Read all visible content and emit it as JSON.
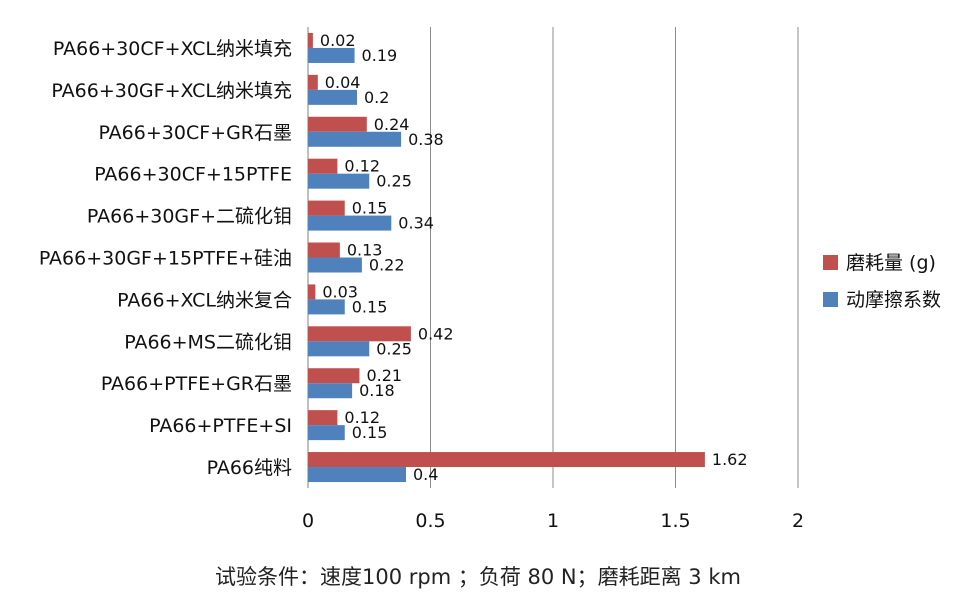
{
  "chart_data": {
    "type": "bar",
    "orientation": "horizontal",
    "categories": [
      "PA66+30CF+XCL纳米填充",
      "PA66+30GF+XCL纳米填充",
      "PA66+30CF+GR石墨",
      "PA66+30CF+15PTFE",
      "PA66+30GF+二硫化钼",
      "PA66+30GF+15PTFE+硅油",
      "PA66+XCL纳米复合",
      "PA66+MS二硫化钼",
      "PA66+PTFE+GR石墨",
      "PA66+PTFE+SI",
      "PA66纯料"
    ],
    "series": [
      {
        "name": "磨耗量 (g)",
        "color": "#c0504d",
        "values": [
          0.02,
          0.04,
          0.24,
          0.12,
          0.15,
          0.13,
          0.03,
          0.42,
          0.21,
          0.12,
          1.62
        ],
        "labels": [
          "0.02",
          "0.04",
          "0.24",
          "0.12",
          "0.15",
          "0.13",
          "0.03",
          "0.42",
          "0.21",
          "0.12",
          "1.62"
        ]
      },
      {
        "name": "动摩擦系数",
        "color": "#4f81bd",
        "values": [
          0.19,
          0.2,
          0.38,
          0.25,
          0.34,
          0.22,
          0.15,
          0.25,
          0.18,
          0.15,
          0.4
        ],
        "labels": [
          "0.19",
          "0.2",
          "0.38",
          "0.25",
          "0.34",
          "0.22",
          "0.15",
          "0.25",
          "0.18",
          "0.15",
          "0.4"
        ]
      }
    ],
    "xlim": [
      0,
      2
    ],
    "xticks": [
      0,
      0.5,
      1,
      1.5,
      2
    ],
    "xtick_labels": [
      "0",
      "0.5",
      "1",
      "1.5",
      "2"
    ],
    "grid": "vertical",
    "legend_position": "right",
    "caption": "试验条件：速度100  rpm ；负荷 80 N；磨耗距离 3 km"
  }
}
